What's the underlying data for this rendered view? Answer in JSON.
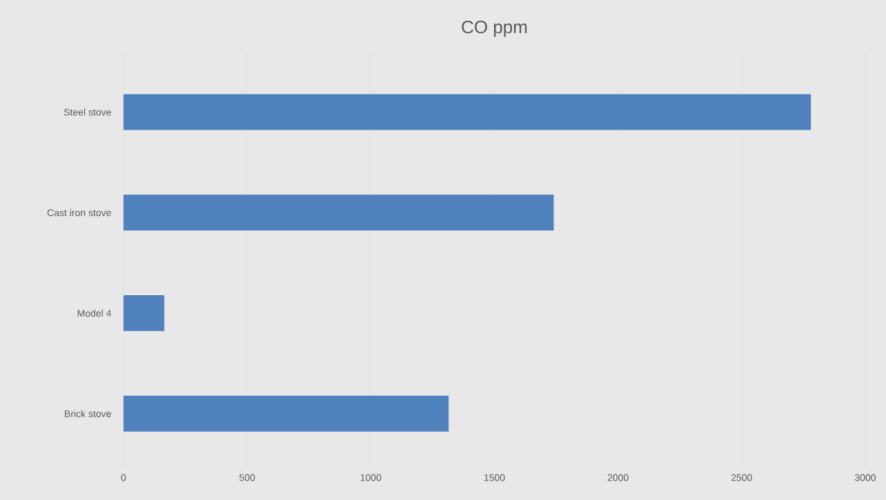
{
  "chart_data": {
    "type": "bar",
    "orientation": "horizontal",
    "title": "CO ppm",
    "categories": [
      "Steel stove",
      "Cast iron stove",
      "Model 4",
      "Brick stove"
    ],
    "values": [
      2780,
      1740,
      165,
      1315
    ],
    "color": "#4f81bd",
    "xlim": [
      0,
      3000
    ],
    "xticks": [
      0,
      500,
      1000,
      1500,
      2000,
      2500,
      3000
    ],
    "grid": "x"
  }
}
